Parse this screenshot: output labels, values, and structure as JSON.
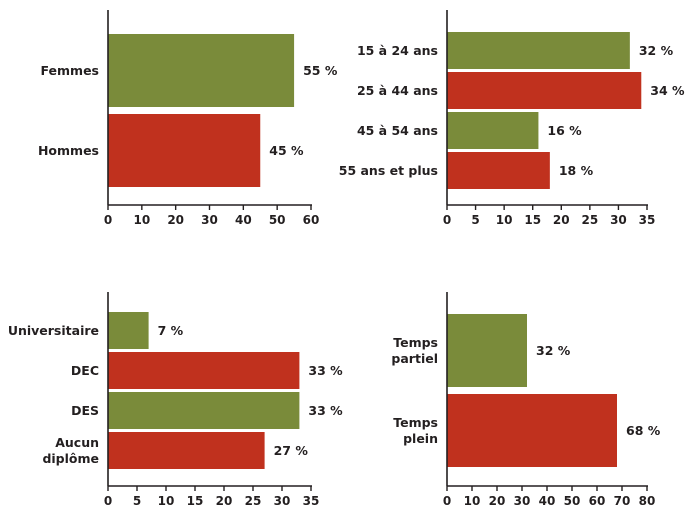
{
  "colors": {
    "green": "#7a8b3a",
    "red": "#c0311e",
    "axis": "#231f20"
  },
  "chart_data": [
    {
      "type": "bar",
      "orientation": "horizontal",
      "categories": [
        [
          "Femmes"
        ],
        [
          "Hommes"
        ]
      ],
      "values": [
        55,
        45
      ],
      "value_labels": [
        "55 %",
        "45 %"
      ],
      "bar_colors": [
        "green",
        "red"
      ],
      "xlim": [
        0,
        60
      ],
      "ticks": [
        0,
        10,
        20,
        30,
        40,
        50,
        60
      ],
      "title": "",
      "xlabel": "",
      "ylabel": ""
    },
    {
      "type": "bar",
      "orientation": "horizontal",
      "categories": [
        [
          "15 à 24 ans"
        ],
        [
          "25 à 44 ans"
        ],
        [
          "45 à 54 ans"
        ],
        [
          "55 ans et plus"
        ]
      ],
      "values": [
        32,
        34,
        16,
        18
      ],
      "value_labels": [
        "32 %",
        "34 %",
        "16 %",
        "18 %"
      ],
      "bar_colors": [
        "green",
        "red",
        "green",
        "red"
      ],
      "xlim": [
        0,
        35
      ],
      "ticks": [
        0,
        5,
        10,
        15,
        20,
        25,
        30,
        35
      ],
      "title": "",
      "xlabel": "",
      "ylabel": ""
    },
    {
      "type": "bar",
      "orientation": "horizontal",
      "categories": [
        [
          "Universitaire"
        ],
        [
          "DEC"
        ],
        [
          "DES"
        ],
        [
          "Aucun",
          "diplôme"
        ]
      ],
      "values": [
        7,
        33,
        33,
        27
      ],
      "value_labels": [
        "7 %",
        "33 %",
        "33 %",
        "27 %"
      ],
      "bar_colors": [
        "green",
        "red",
        "green",
        "red"
      ],
      "xlim": [
        0,
        35
      ],
      "ticks": [
        0,
        5,
        10,
        15,
        20,
        25,
        30,
        35
      ],
      "title": "",
      "xlabel": "",
      "ylabel": ""
    },
    {
      "type": "bar",
      "orientation": "horizontal",
      "categories": [
        [
          "Temps",
          "partiel"
        ],
        [
          "Temps",
          "plein"
        ]
      ],
      "values": [
        32,
        68
      ],
      "value_labels": [
        "32 %",
        "68 %"
      ],
      "bar_colors": [
        "green",
        "red"
      ],
      "xlim": [
        0,
        80
      ],
      "ticks": [
        0,
        10,
        20,
        30,
        40,
        50,
        60,
        70,
        80
      ],
      "title": "",
      "xlabel": "",
      "ylabel": ""
    }
  ]
}
